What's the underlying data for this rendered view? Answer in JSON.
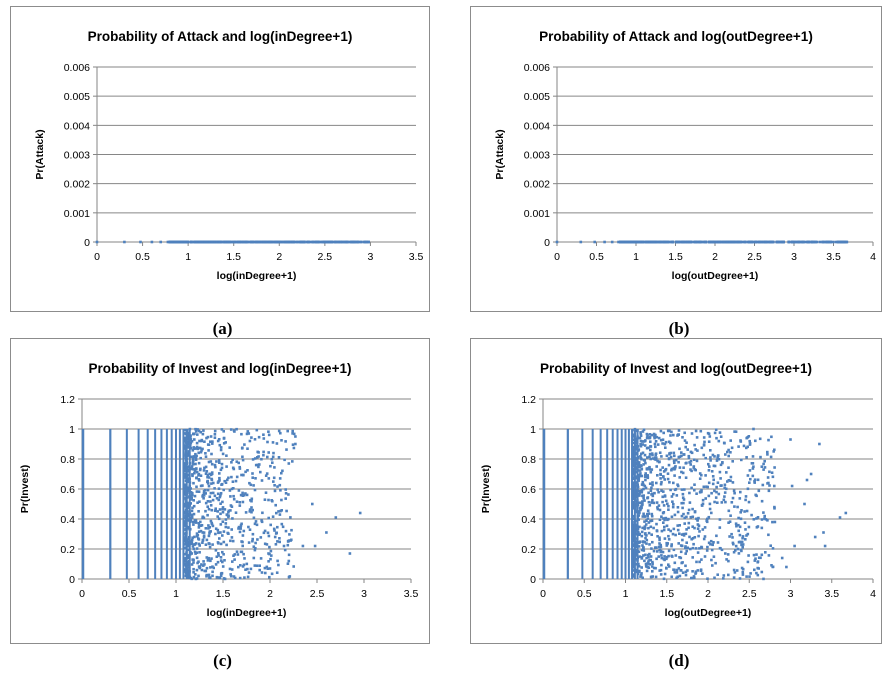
{
  "chart_data": [
    {
      "type": "scatter",
      "panel": "a",
      "caption": "(a)",
      "title": "Probability of Attack and log(inDegree+1)",
      "xlabel": "log(inDegree+1)",
      "ylabel": "Pr(Attack)",
      "xlim": [
        0,
        3.5
      ],
      "ylim": [
        0,
        0.006
      ],
      "xticks": [
        0,
        0.5,
        1,
        1.5,
        2,
        2.5,
        3,
        3.5
      ],
      "yticks": [
        0,
        0.001,
        0.002,
        0.003,
        0.004,
        0.005,
        0.006
      ],
      "xtick_labels": [
        "0",
        "0.5",
        "1",
        "1.5",
        "2",
        "2.5",
        "3",
        "3.5"
      ],
      "ytick_labels": [
        "0",
        "0.001",
        "0.002",
        "0.003",
        "0.004",
        "0.005",
        "0.006"
      ],
      "grid": "horizontal",
      "y_value_all_points": 0,
      "x_max_observed": 2.98,
      "color": "#4f81bd"
    },
    {
      "type": "scatter",
      "panel": "b",
      "caption": "(b)",
      "title": "Probability of Attack and log(outDegree+1)",
      "xlabel": "log(outDegree+1)",
      "ylabel": "Pr(Attack)",
      "xlim": [
        0,
        4
      ],
      "ylim": [
        0,
        0.006
      ],
      "xticks": [
        0,
        0.5,
        1,
        1.5,
        2,
        2.5,
        3,
        3.5,
        4
      ],
      "yticks": [
        0,
        0.001,
        0.002,
        0.003,
        0.004,
        0.005,
        0.006
      ],
      "xtick_labels": [
        "0",
        "0.5",
        "1",
        "1.5",
        "2",
        "2.5",
        "3",
        "3.5",
        "4"
      ],
      "ytick_labels": [
        "0",
        "0.001",
        "0.002",
        "0.003",
        "0.004",
        "0.005",
        "0.006"
      ],
      "grid": "horizontal",
      "y_value_all_points": 0,
      "x_max_observed": 3.67,
      "color": "#4f81bd"
    },
    {
      "type": "scatter",
      "panel": "c",
      "caption": "(c)",
      "title": "Probability of Invest and log(inDegree+1)",
      "xlabel": "log(inDegree+1)",
      "ylabel": "Pr(Invest)",
      "xlim": [
        0,
        3.5
      ],
      "ylim": [
        0,
        1.2
      ],
      "xticks": [
        0,
        0.5,
        1,
        1.5,
        2,
        2.5,
        3,
        3.5
      ],
      "yticks": [
        0,
        0.2,
        0.4,
        0.6,
        0.8,
        1,
        1.2
      ],
      "xtick_labels": [
        "0",
        "0.5",
        "1",
        "1.5",
        "2",
        "2.5",
        "3",
        "3.5"
      ],
      "ytick_labels": [
        "0",
        "0.2",
        "0.4",
        "0.6",
        "0.8",
        "1",
        "1.2"
      ],
      "grid": "horizontal",
      "x_max_observed": 2.96,
      "color": "#4f81bd",
      "outlier_points": [
        {
          "x": 2.96,
          "y": 0.44
        },
        {
          "x": 2.85,
          "y": 0.17
        },
        {
          "x": 2.7,
          "y": 0.41
        },
        {
          "x": 2.6,
          "y": 0.31
        },
        {
          "x": 2.48,
          "y": 0.22
        },
        {
          "x": 2.45,
          "y": 0.5
        },
        {
          "x": 2.35,
          "y": 0.22
        },
        {
          "x": 2.27,
          "y": 0.9
        },
        {
          "x": 2.27,
          "y": 0.95
        },
        {
          "x": 2.2,
          "y": 0.77
        },
        {
          "x": 2.2,
          "y": 0.12
        },
        {
          "x": 2.0,
          "y": 0.07
        },
        {
          "x": 1.95,
          "y": 0.04
        }
      ]
    },
    {
      "type": "scatter",
      "panel": "d",
      "caption": "(d)",
      "title": "Probability of Invest and log(outDegree+1)",
      "xlabel": "log(outDegree+1)",
      "ylabel": "Pr(Invest)",
      "xlim": [
        0,
        4
      ],
      "ylim": [
        0,
        1.2
      ],
      "xticks": [
        0,
        0.5,
        1,
        1.5,
        2,
        2.5,
        3,
        3.5,
        4
      ],
      "yticks": [
        0,
        0.2,
        0.4,
        0.6,
        0.8,
        1,
        1.2
      ],
      "xtick_labels": [
        "0",
        "0.5",
        "1",
        "1.5",
        "2",
        "2.5",
        "3",
        "3.5",
        "4"
      ],
      "ytick_labels": [
        "0",
        "0.2",
        "0.4",
        "0.6",
        "0.8",
        "1",
        "1.2"
      ],
      "grid": "horizontal",
      "x_max_observed": 3.67,
      "color": "#4f81bd",
      "outlier_points": [
        {
          "x": 3.67,
          "y": 0.44
        },
        {
          "x": 3.6,
          "y": 0.41
        },
        {
          "x": 3.42,
          "y": 0.22
        },
        {
          "x": 3.4,
          "y": 0.31
        },
        {
          "x": 3.35,
          "y": 0.9
        },
        {
          "x": 3.3,
          "y": 0.28
        },
        {
          "x": 3.25,
          "y": 0.7
        },
        {
          "x": 3.2,
          "y": 0.66
        },
        {
          "x": 3.17,
          "y": 0.5
        },
        {
          "x": 3.05,
          "y": 0.22
        },
        {
          "x": 3.02,
          "y": 0.62
        },
        {
          "x": 3.0,
          "y": 0.93
        },
        {
          "x": 2.95,
          "y": 0.08
        },
        {
          "x": 2.9,
          "y": 0.14
        }
      ]
    }
  ]
}
